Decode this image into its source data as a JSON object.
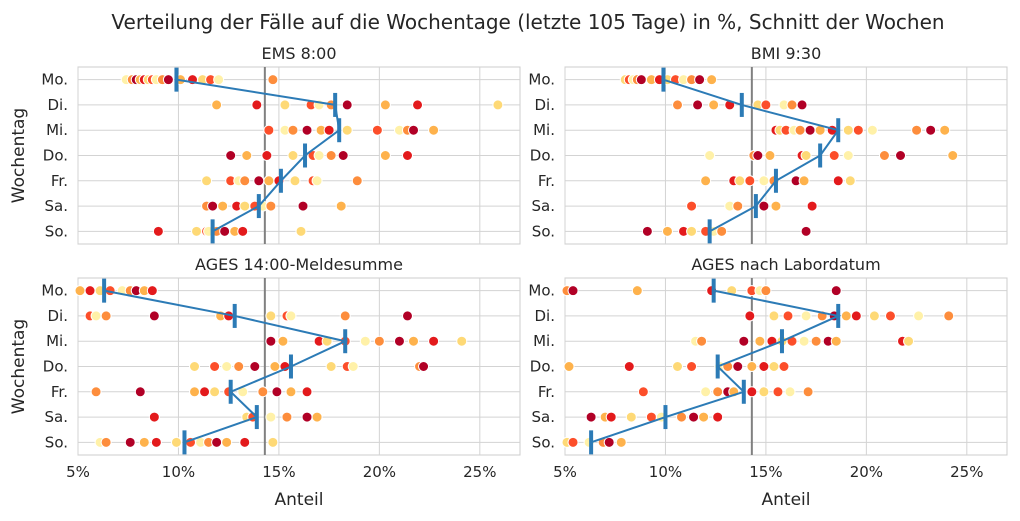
{
  "title": "Verteilung der Fälle auf die Wochentage (letzte 105 Tage) in %, Schnitt der Wochen",
  "colors": {
    "mean_line": "#2c7bb6",
    "reference": "#808080",
    "palette": [
      "#fff1a8",
      "#fed976",
      "#feb24c",
      "#fd8d3c",
      "#fc4e2a",
      "#e31a1c",
      "#b10026"
    ]
  },
  "chart_data": [
    {
      "type": "scatter",
      "title": "EMS 8:00",
      "ylabel": "Wochentag",
      "xlabel": "",
      "categories": [
        "Mo.",
        "Di.",
        "Mi.",
        "Do.",
        "Fr.",
        "Sa.",
        "So."
      ],
      "xlim": [
        5,
        27
      ],
      "xticks": [
        "5%",
        "10%",
        "15%",
        "20%",
        "25%"
      ],
      "xtick_values": [
        5,
        10,
        15,
        20,
        25
      ],
      "reference_value": 14.3,
      "mean": [
        9.9,
        17.8,
        18.0,
        16.3,
        15.1,
        14.0,
        11.7
      ],
      "points": [
        [
          7.4,
          7.7,
          7.9,
          8.1,
          8.3,
          8.5,
          8.7,
          8.9,
          9.2,
          9.5,
          10.1,
          10.7,
          11.2,
          11.6,
          12.0,
          14.7
        ],
        [
          11.9,
          13.9,
          15.3,
          16.6,
          17.0,
          17.6,
          18.4,
          20.3,
          21.9,
          25.9
        ],
        [
          14.5,
          15.3,
          15.7,
          16.4,
          17.1,
          17.5,
          18.4,
          19.9,
          21.0,
          21.4,
          21.7,
          22.7
        ],
        [
          12.6,
          13.4,
          14.4,
          15.7,
          16.7,
          17.0,
          17.6,
          18.2,
          20.3,
          21.4
        ],
        [
          11.4,
          12.6,
          13.0,
          13.3,
          14.0,
          14.5,
          15.0,
          15.8,
          16.7,
          16.9,
          18.9
        ],
        [
          11.4,
          11.7,
          12.2,
          12.9,
          13.3,
          13.8,
          14.2,
          14.6,
          16.2,
          18.1
        ],
        [
          9.0,
          10.9,
          11.4,
          11.5,
          11.9,
          12.3,
          12.8,
          13.2,
          16.1
        ]
      ]
    },
    {
      "type": "scatter",
      "title": "BMI 9:30",
      "ylabel": "",
      "xlabel": "",
      "categories": [
        "Mo.",
        "Di.",
        "Mi.",
        "Do.",
        "Fr.",
        "Sa.",
        "So."
      ],
      "xlim": [
        5,
        27
      ],
      "xticks": [
        "5%",
        "10%",
        "15%",
        "20%",
        "25%"
      ],
      "xtick_values": [
        5,
        10,
        15,
        20,
        25
      ],
      "reference_value": 14.3,
      "mean": [
        9.9,
        13.8,
        18.6,
        17.7,
        15.5,
        14.5,
        12.2
      ],
      "points": [
        [
          8.0,
          8.2,
          8.4,
          8.6,
          8.8,
          9.3,
          9.7,
          10.1,
          10.5,
          10.9,
          11.3,
          11.7,
          12.3
        ],
        [
          10.6,
          11.6,
          12.4,
          13.2,
          14.6,
          15.0,
          15.9,
          16.3,
          16.8
        ],
        [
          15.5,
          15.7,
          16.0,
          16.4,
          16.7,
          17.2,
          17.7,
          18.3,
          19.1,
          19.6,
          20.3,
          22.5,
          23.2,
          23.9
        ],
        [
          12.2,
          14.4,
          14.6,
          15.2,
          16.8,
          17.0,
          18.4,
          19.1,
          20.9,
          21.7,
          24.3
        ],
        [
          12.0,
          13.4,
          13.7,
          14.2,
          14.9,
          15.4,
          16.5,
          16.9,
          18.6,
          19.2
        ],
        [
          11.3,
          13.2,
          13.6,
          14.9,
          15.5,
          17.3
        ],
        [
          9.1,
          10.1,
          10.9,
          11.3,
          12.0,
          12.4,
          12.8,
          17.0
        ]
      ]
    },
    {
      "type": "scatter",
      "title": "AGES 14:00-Meldesumme",
      "ylabel": "Wochentag",
      "xlabel": "Anteil",
      "categories": [
        "Mo.",
        "Di.",
        "Mi.",
        "Do.",
        "Fr.",
        "Sa.",
        "So."
      ],
      "xlim": [
        5,
        27
      ],
      "xticks": [
        "5%",
        "10%",
        "15%",
        "20%",
        "25%"
      ],
      "xtick_values": [
        5,
        10,
        15,
        20,
        25
      ],
      "reference_value": 14.3,
      "mean": [
        6.3,
        12.8,
        18.3,
        15.6,
        12.6,
        13.9,
        10.3
      ],
      "points": [
        [
          5.1,
          5.6,
          6.1,
          6.6,
          7.2,
          7.6,
          7.9,
          8.3,
          8.7
        ],
        [
          5.6,
          5.9,
          6.4,
          8.8,
          12.1,
          12.5,
          14.6,
          15.4,
          15.6,
          18.3,
          21.4
        ],
        [
          14.6,
          15.2,
          17.0,
          17.4,
          18.3,
          19.3,
          20.0,
          21.0,
          21.7,
          22.7,
          24.1
        ],
        [
          10.8,
          11.8,
          12.4,
          13.0,
          13.8,
          14.8,
          15.3,
          17.6,
          18.4,
          18.7,
          22.0,
          22.2
        ],
        [
          5.9,
          8.1,
          10.8,
          11.3,
          11.8,
          12.5,
          13.2,
          14.2,
          14.9,
          15.6,
          16.4
        ],
        [
          8.8,
          13.4,
          13.7,
          14.6,
          15.4,
          16.4,
          16.9
        ],
        [
          6.1,
          6.4,
          7.6,
          8.3,
          8.9,
          9.9,
          10.6,
          11.1,
          11.5,
          11.9,
          12.4,
          13.3,
          14.7
        ]
      ]
    },
    {
      "type": "scatter",
      "title": "AGES nach Labordatum",
      "ylabel": "",
      "xlabel": "Anteil",
      "categories": [
        "Mo.",
        "Di.",
        "Mi.",
        "Do.",
        "Fr.",
        "Sa.",
        "So."
      ],
      "xlim": [
        5,
        27
      ],
      "xticks": [
        "5%",
        "10%",
        "15%",
        "20%",
        "25%"
      ],
      "xtick_values": [
        5,
        10,
        15,
        20,
        25
      ],
      "reference_value": 14.3,
      "mean": [
        12.4,
        18.6,
        15.8,
        12.6,
        13.9,
        10.0,
        6.3
      ],
      "points": [
        [
          5.1,
          5.4,
          8.6,
          12.3,
          13.3,
          14.3,
          14.7,
          15.0,
          18.5
        ],
        [
          14.2,
          15.4,
          16.1,
          17.0,
          17.8,
          18.4,
          19.0,
          19.5,
          20.4,
          21.2,
          22.6,
          24.1
        ],
        [
          11.5,
          11.8,
          13.9,
          14.7,
          15.3,
          15.8,
          16.3,
          16.9,
          17.5,
          18.1,
          18.5,
          21.8,
          22.1
        ],
        [
          5.2,
          8.2,
          10.6,
          11.3,
          12.7,
          13.1,
          13.6,
          14.3,
          14.9,
          15.4,
          15.9
        ],
        [
          8.9,
          12.0,
          12.6,
          13.1,
          13.4,
          14.3,
          14.9,
          15.6,
          16.2,
          17.1
        ],
        [
          6.3,
          7.0,
          7.3,
          8.3,
          9.3,
          9.8,
          10.8,
          11.4,
          11.9,
          12.6
        ],
        [
          5.1,
          5.4,
          6.2,
          6.9,
          7.2,
          7.8
        ]
      ]
    }
  ]
}
